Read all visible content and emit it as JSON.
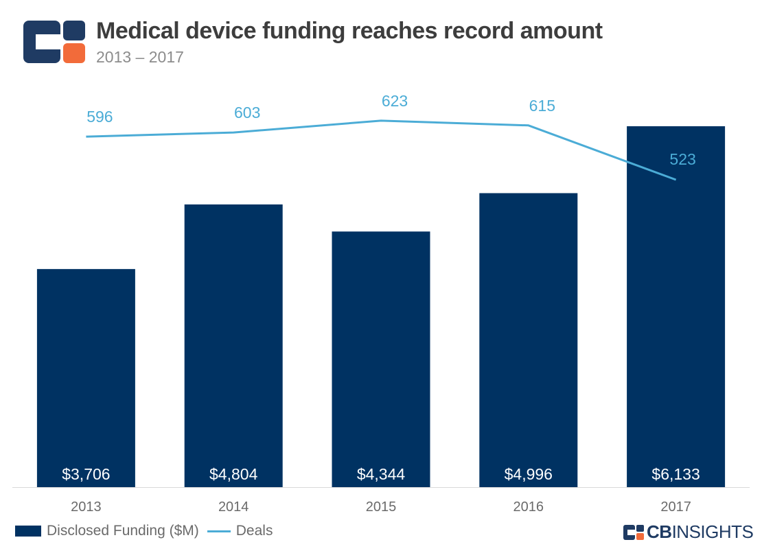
{
  "header": {
    "title": "Medical device funding reaches record amount",
    "subtitle": "2013 – 2017"
  },
  "chart_data": {
    "type": "bar",
    "categories": [
      "2013",
      "2014",
      "2015",
      "2016",
      "2017"
    ],
    "series": [
      {
        "name": "Disclosed Funding ($M)",
        "type": "bar",
        "values": [
          3706,
          4804,
          4344,
          4996,
          6133
        ],
        "labels": [
          "$3,706",
          "$4,804",
          "$4,344",
          "$4,996",
          "$6,133"
        ],
        "color": "#003262"
      },
      {
        "name": "Deals",
        "type": "line",
        "values": [
          596,
          603,
          623,
          615,
          523
        ],
        "labels": [
          "596",
          "603",
          "623",
          "615",
          "523"
        ],
        "color": "#4bacd6"
      }
    ],
    "legend_position": "bottom-left",
    "grid": false
  },
  "legend": {
    "funding_label": "Disclosed Funding ($M)",
    "deals_label": "Deals"
  },
  "brand": {
    "bold": "CB",
    "light": "INSIGHTS",
    "colors": {
      "navy": "#1f3b63",
      "orange": "#f26b3a"
    }
  }
}
